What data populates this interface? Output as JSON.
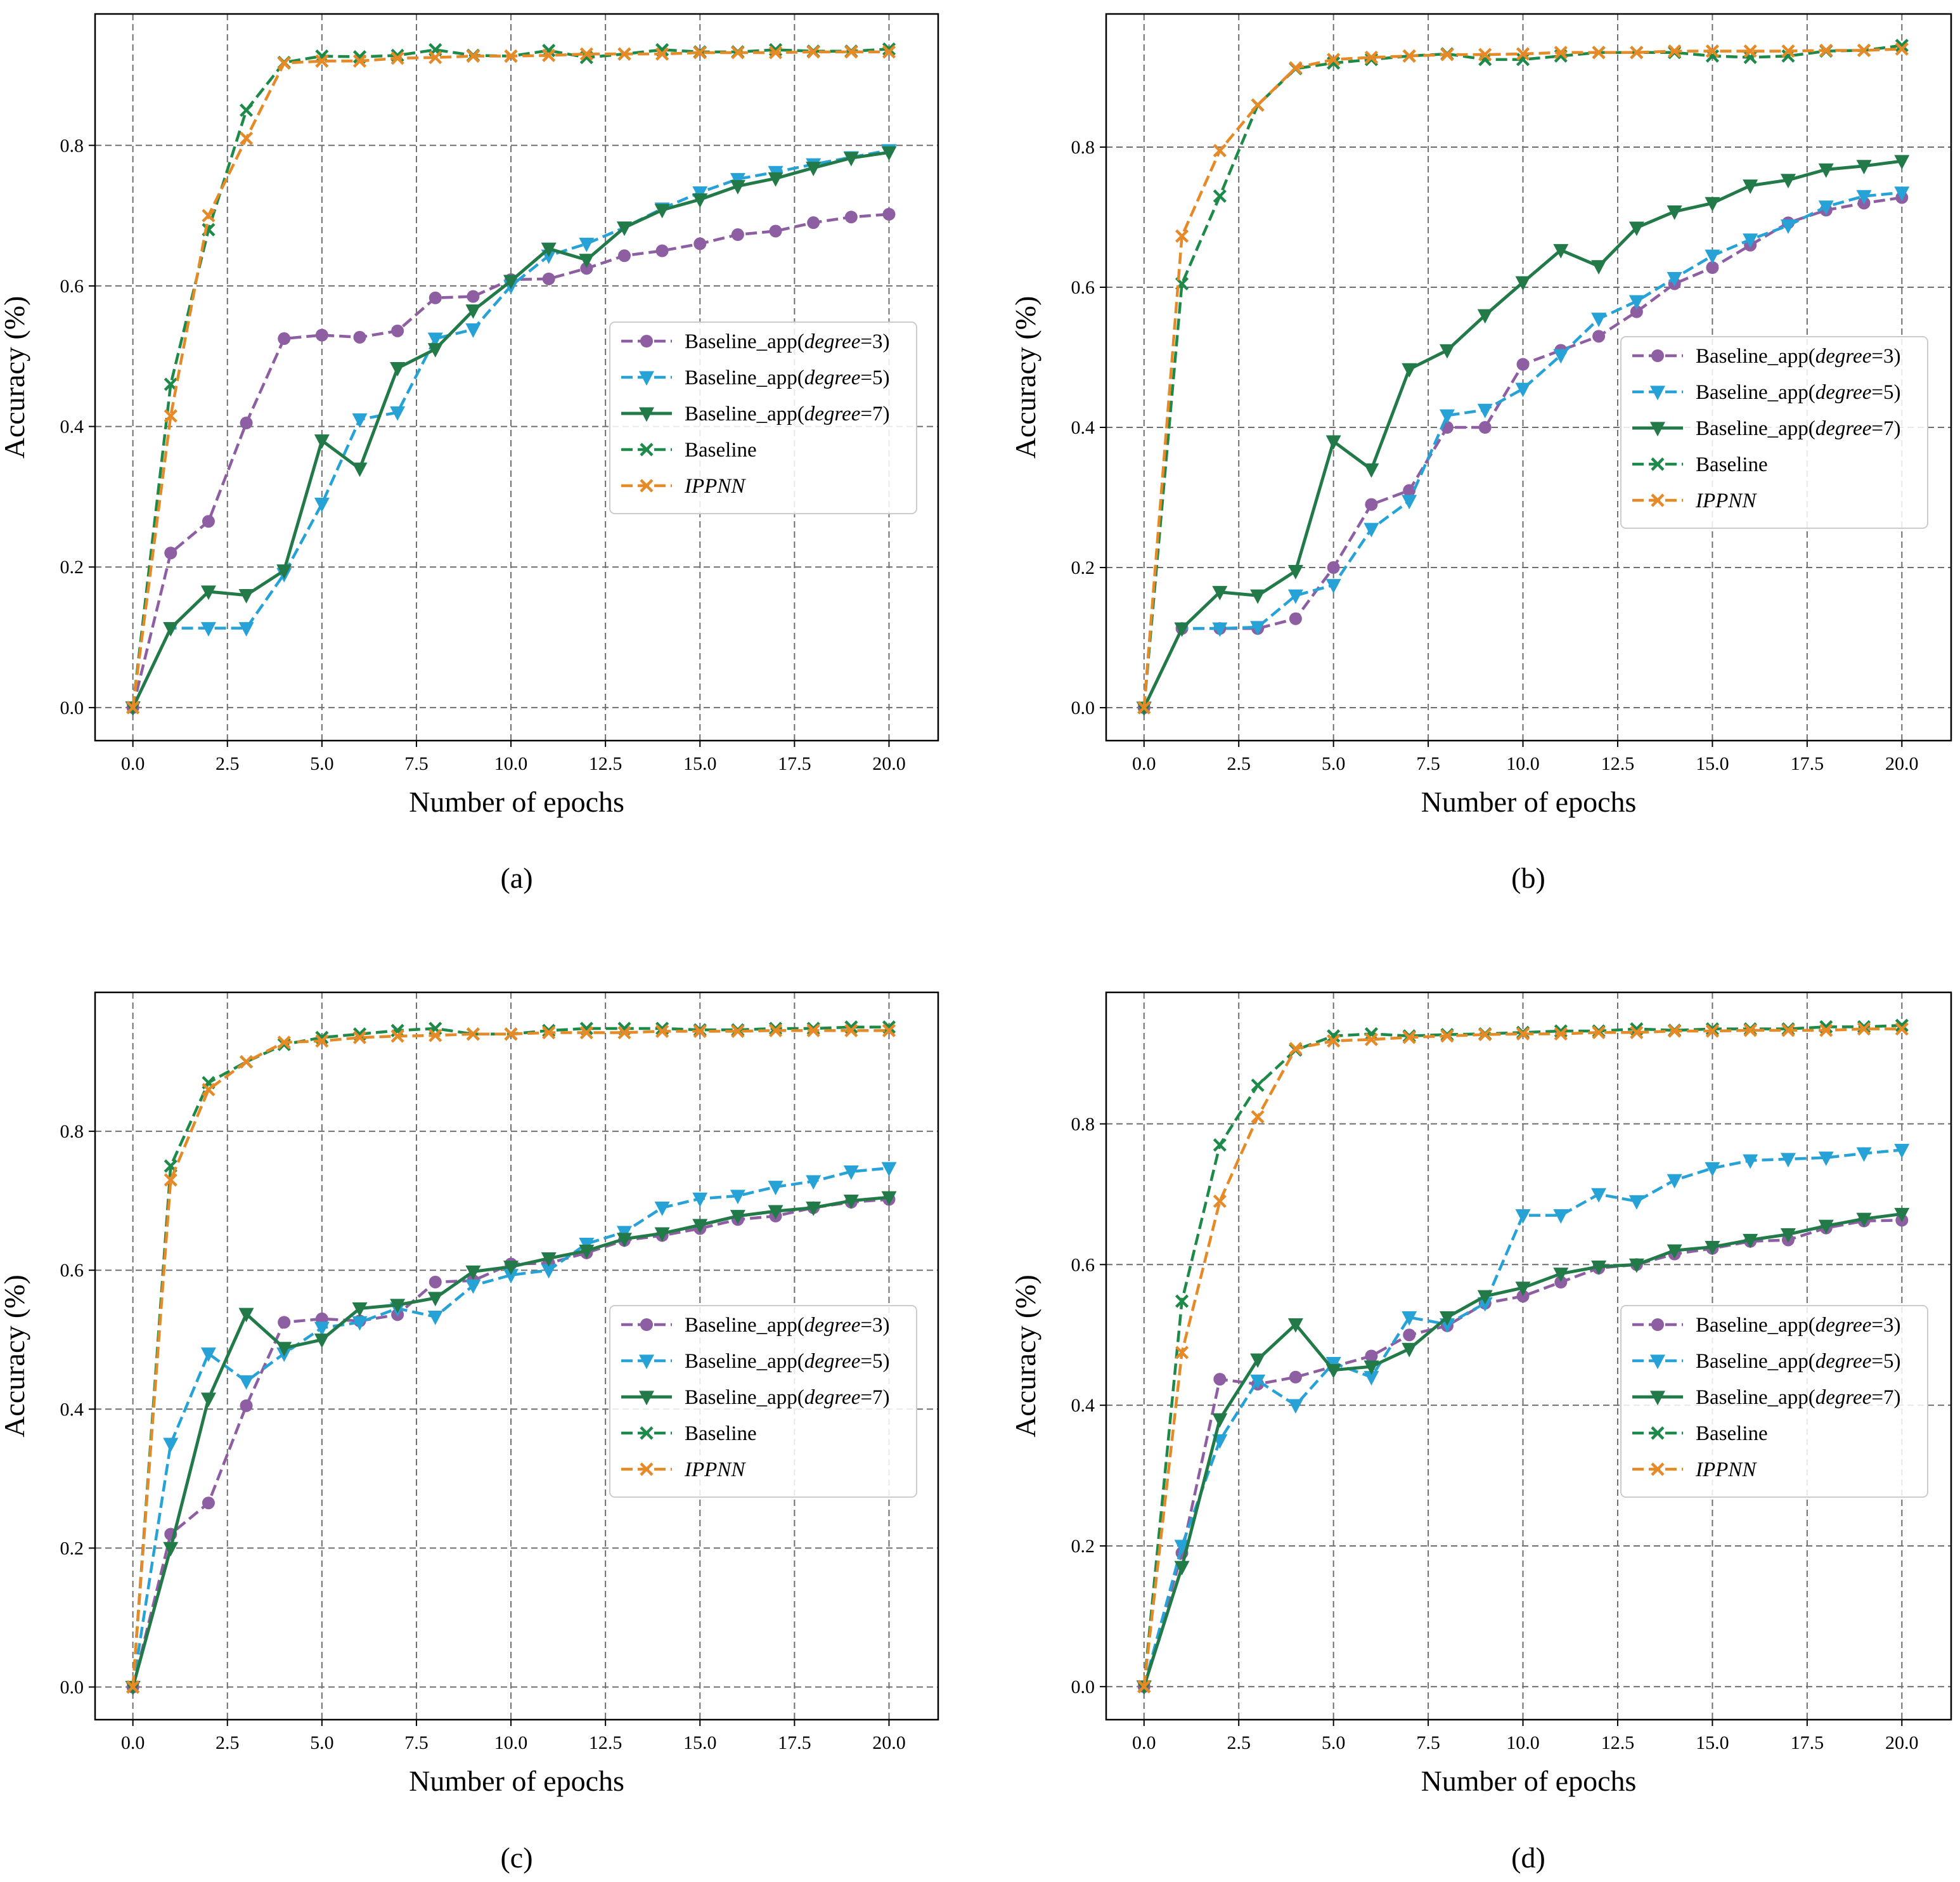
{
  "legend_colors": {
    "Baseline_app3": "#8e5ea2",
    "Baseline_app5": "#27a2d6",
    "Baseline_app7": "#237a49",
    "Baseline": "#1e8a4a",
    "IPPNN": "#e58a27"
  },
  "chart_data": [
    {
      "panel": "(a)",
      "type": "line",
      "xlabel": "Number of epochs",
      "ylabel": "Accuracy (%)",
      "xlim": [
        -1,
        21.3
      ],
      "ylim": [
        -0.047,
        0.987
      ],
      "xticks": [
        "0.0",
        "2.5",
        "5.0",
        "7.5",
        "10.0",
        "12.5",
        "15.0",
        "17.5",
        "20.0"
      ],
      "yticks": [
        "0.0",
        "0.2",
        "0.4",
        "0.6",
        "0.8"
      ],
      "legend_position": "center-right",
      "x": [
        0,
        1,
        2,
        3,
        4,
        5,
        6,
        7,
        8,
        9,
        10,
        11,
        12,
        13,
        14,
        15,
        16,
        17,
        18,
        19,
        20
      ],
      "series": [
        {
          "name": "Baseline_app(degree=3)",
          "values": [
            0.0,
            0.22,
            0.265,
            0.405,
            0.525,
            0.53,
            0.527,
            0.536,
            0.583,
            0.585,
            0.609,
            0.61,
            0.625,
            0.643,
            0.65,
            0.66,
            0.673,
            0.678,
            0.69,
            0.698,
            0.702
          ]
        },
        {
          "name": "Baseline_app(degree=5)",
          "values": [
            0.0,
            0.113,
            0.113,
            0.113,
            0.19,
            0.29,
            0.41,
            0.42,
            0.525,
            0.538,
            0.6,
            0.643,
            0.66,
            0.683,
            0.71,
            0.733,
            0.752,
            0.762,
            0.773,
            0.783,
            0.793
          ]
        },
        {
          "name": "Baseline_app(degree=7)",
          "values": [
            0.0,
            0.113,
            0.165,
            0.16,
            0.195,
            0.38,
            0.34,
            0.483,
            0.51,
            0.565,
            0.607,
            0.653,
            0.637,
            0.683,
            0.708,
            0.723,
            0.742,
            0.753,
            0.768,
            0.782,
            0.79
          ]
        },
        {
          "name": "Baseline",
          "values": [
            0.0,
            0.46,
            0.68,
            0.85,
            0.918,
            0.927,
            0.926,
            0.928,
            0.936,
            0.928,
            0.927,
            0.935,
            0.925,
            0.93,
            0.936,
            0.933,
            0.933,
            0.936,
            0.934,
            0.934,
            0.937
          ]
        },
        {
          "name": "IPPNN",
          "values": [
            0.0,
            0.415,
            0.7,
            0.81,
            0.917,
            0.92,
            0.92,
            0.924,
            0.925,
            0.927,
            0.927,
            0.928,
            0.93,
            0.93,
            0.93,
            0.932,
            0.932,
            0.932,
            0.933,
            0.933,
            0.933
          ]
        }
      ]
    },
    {
      "panel": "(b)",
      "type": "line",
      "xlabel": "Number of epochs",
      "ylabel": "Accuracy (%)",
      "xlim": [
        -1,
        21.3
      ],
      "ylim": [
        -0.047,
        0.99
      ],
      "xticks": [
        "0.0",
        "2.5",
        "5.0",
        "7.5",
        "10.0",
        "12.5",
        "15.0",
        "17.5",
        "20.0"
      ],
      "yticks": [
        "0.0",
        "0.2",
        "0.4",
        "0.6",
        "0.8"
      ],
      "legend_position": "center-right",
      "x": [
        0,
        1,
        2,
        3,
        4,
        5,
        6,
        7,
        8,
        9,
        10,
        11,
        12,
        13,
        14,
        15,
        16,
        17,
        18,
        19,
        20
      ],
      "series": [
        {
          "name": "Baseline_app(degree=3)",
          "values": [
            0.0,
            0.113,
            0.113,
            0.113,
            0.127,
            0.2,
            0.29,
            0.31,
            0.4,
            0.4,
            0.49,
            0.51,
            0.53,
            0.565,
            0.605,
            0.628,
            0.66,
            0.692,
            0.71,
            0.72,
            0.728
          ]
        },
        {
          "name": "Baseline_app(degree=5)",
          "values": [
            0.0,
            0.113,
            0.113,
            0.115,
            0.16,
            0.175,
            0.255,
            0.295,
            0.417,
            0.425,
            0.455,
            0.503,
            0.555,
            0.58,
            0.613,
            0.645,
            0.668,
            0.688,
            0.715,
            0.73,
            0.735
          ]
        },
        {
          "name": "Baseline_app(degree=7)",
          "values": [
            0.0,
            0.113,
            0.165,
            0.16,
            0.195,
            0.38,
            0.34,
            0.483,
            0.51,
            0.56,
            0.607,
            0.653,
            0.63,
            0.685,
            0.708,
            0.72,
            0.745,
            0.753,
            0.768,
            0.773,
            0.78
          ]
        },
        {
          "name": "Baseline",
          "values": [
            0.0,
            0.605,
            0.73,
            0.86,
            0.912,
            0.92,
            0.925,
            0.93,
            0.933,
            0.925,
            0.925,
            0.93,
            0.935,
            0.935,
            0.935,
            0.93,
            0.928,
            0.93,
            0.937,
            0.938,
            0.945
          ]
        },
        {
          "name": "IPPNN",
          "values": [
            0.0,
            0.673,
            0.795,
            0.86,
            0.913,
            0.925,
            0.928,
            0.93,
            0.932,
            0.932,
            0.933,
            0.935,
            0.935,
            0.935,
            0.937,
            0.937,
            0.937,
            0.937,
            0.938,
            0.938,
            0.94
          ]
        }
      ]
    },
    {
      "panel": "(c)",
      "type": "line",
      "xlabel": "Number of epochs",
      "ylabel": "Accuracy (%)",
      "xlim": [
        -1,
        21.3
      ],
      "ylim": [
        -0.047,
        1.0
      ],
      "xticks": [
        "0.0",
        "2.5",
        "5.0",
        "7.5",
        "10.0",
        "12.5",
        "15.0",
        "17.5",
        "20.0"
      ],
      "yticks": [
        "0.0",
        "0.2",
        "0.4",
        "0.6",
        "0.8"
      ],
      "legend_position": "center-right",
      "x": [
        0,
        1,
        2,
        3,
        4,
        5,
        6,
        7,
        8,
        9,
        10,
        11,
        12,
        13,
        14,
        15,
        16,
        17,
        18,
        19,
        20
      ],
      "series": [
        {
          "name": "Baseline_app(degree=3)",
          "values": [
            0.0,
            0.22,
            0.265,
            0.405,
            0.525,
            0.53,
            0.527,
            0.536,
            0.583,
            0.585,
            0.609,
            0.61,
            0.625,
            0.643,
            0.65,
            0.66,
            0.673,
            0.678,
            0.69,
            0.698,
            0.702
          ]
        },
        {
          "name": "Baseline_app(degree=5)",
          "values": [
            0.0,
            0.35,
            0.48,
            0.44,
            0.48,
            0.517,
            0.525,
            0.545,
            0.533,
            0.578,
            0.593,
            0.6,
            0.638,
            0.655,
            0.69,
            0.703,
            0.707,
            0.72,
            0.728,
            0.742,
            0.747
          ]
        },
        {
          "name": "Baseline_app(degree=7)",
          "values": [
            0.0,
            0.2,
            0.415,
            0.537,
            0.488,
            0.5,
            0.545,
            0.55,
            0.56,
            0.598,
            0.605,
            0.617,
            0.628,
            0.645,
            0.653,
            0.665,
            0.678,
            0.685,
            0.69,
            0.7,
            0.705
          ]
        },
        {
          "name": "Baseline",
          "values": [
            0.0,
            0.75,
            0.87,
            0.9,
            0.925,
            0.935,
            0.94,
            0.945,
            0.948,
            0.94,
            0.94,
            0.945,
            0.948,
            0.948,
            0.948,
            0.946,
            0.946,
            0.948,
            0.948,
            0.95,
            0.95
          ]
        },
        {
          "name": "IPPNN",
          "values": [
            0.0,
            0.73,
            0.86,
            0.9,
            0.928,
            0.93,
            0.935,
            0.937,
            0.938,
            0.94,
            0.94,
            0.942,
            0.942,
            0.942,
            0.944,
            0.944,
            0.944,
            0.945,
            0.945,
            0.945,
            0.945
          ]
        }
      ]
    },
    {
      "panel": "(d)",
      "type": "line",
      "xlabel": "Number of epochs",
      "ylabel": "Accuracy (%)",
      "xlim": [
        -1,
        21.3
      ],
      "ylim": [
        -0.047,
        0.987
      ],
      "xticks": [
        "0.0",
        "2.5",
        "5.0",
        "7.5",
        "10.0",
        "12.5",
        "15.0",
        "17.5",
        "20.0"
      ],
      "yticks": [
        "0.0",
        "0.2",
        "0.4",
        "0.6",
        "0.8"
      ],
      "legend_position": "center-right",
      "x": [
        0,
        1,
        2,
        3,
        4,
        5,
        6,
        7,
        8,
        9,
        10,
        11,
        12,
        13,
        14,
        15,
        16,
        17,
        18,
        19,
        20
      ],
      "series": [
        {
          "name": "Baseline_app(degree=3)",
          "values": [
            0.0,
            0.19,
            0.437,
            0.43,
            0.44,
            0.455,
            0.47,
            0.5,
            0.513,
            0.545,
            0.555,
            0.575,
            0.595,
            0.6,
            0.615,
            0.623,
            0.633,
            0.635,
            0.652,
            0.662,
            0.663
          ]
        },
        {
          "name": "Baseline_app(degree=5)",
          "values": [
            0.0,
            0.2,
            0.35,
            0.435,
            0.4,
            0.46,
            0.44,
            0.525,
            0.515,
            0.545,
            0.67,
            0.67,
            0.7,
            0.69,
            0.72,
            0.737,
            0.748,
            0.75,
            0.752,
            0.758,
            0.763
          ]
        },
        {
          "name": "Baseline_app(degree=7)",
          "values": [
            0.0,
            0.17,
            0.38,
            0.465,
            0.515,
            0.45,
            0.455,
            0.48,
            0.525,
            0.555,
            0.567,
            0.587,
            0.597,
            0.6,
            0.62,
            0.625,
            0.635,
            0.643,
            0.655,
            0.665,
            0.672
          ]
        },
        {
          "name": "Baseline",
          "values": [
            0.0,
            0.548,
            0.77,
            0.855,
            0.905,
            0.925,
            0.928,
            0.925,
            0.927,
            0.928,
            0.93,
            0.932,
            0.932,
            0.935,
            0.933,
            0.935,
            0.935,
            0.935,
            0.938,
            0.938,
            0.94
          ]
        },
        {
          "name": "IPPNN",
          "values": [
            0.0,
            0.475,
            0.69,
            0.81,
            0.907,
            0.918,
            0.92,
            0.923,
            0.925,
            0.927,
            0.928,
            0.928,
            0.93,
            0.93,
            0.932,
            0.932,
            0.933,
            0.933,
            0.933,
            0.935,
            0.935
          ]
        }
      ]
    }
  ],
  "legend": {
    "entries": [
      {
        "prefix": "Baseline_app(",
        "italic": "degree",
        "suffix": "=3)"
      },
      {
        "prefix": "Baseline_app(",
        "italic": "degree",
        "suffix": "=5)"
      },
      {
        "prefix": "Baseline_app(",
        "italic": "degree",
        "suffix": "=7)"
      },
      {
        "prefix": "Baseline",
        "italic": "",
        "suffix": ""
      },
      {
        "prefix": "",
        "italic": "IPPNN",
        "suffix": ""
      }
    ]
  }
}
